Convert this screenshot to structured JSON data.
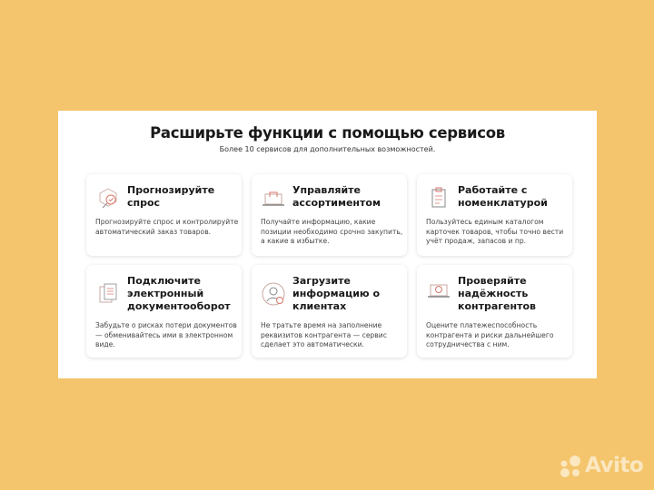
{
  "header": {
    "title": "Расширьте функции с помощью сервисов",
    "subtitle": "Более 10 сервисов для дополнительных возможностей."
  },
  "cards": [
    {
      "title": "Прогнозируйте спрос",
      "text": "Прогнозируйте спрос и контролируйте автоматический заказ товаров.",
      "icon": "forecast-box-magnifier-icon"
    },
    {
      "title": "Управляйте ассортиментом",
      "text": "Получайте информацию, какие позиции необходимо срочно закупить, а какие в избытке.",
      "icon": "laptop-bag-icon"
    },
    {
      "title": "Работайте с номенклатурой",
      "text": "Пользуйтесь единым каталогом карточек товаров, чтобы точно вести учёт продаж, запасов и пр.",
      "icon": "clipboard-check-icon"
    },
    {
      "title": "Подключите электронный документооборот",
      "text": "Забудьте о рисках потери документов — обменивайтесь ими в электронном виде.",
      "icon": "documents-icon"
    },
    {
      "title": "Загрузите информацию о клиентах",
      "text": "Не тратьте время на заполнение реквизитов контрагента — сервис сделает это автоматически.",
      "icon": "user-check-icon"
    },
    {
      "title": "Проверяйте надёжность контрагентов",
      "text": "Оцените платежеспособность контрагента и риски дальнейшего сотрудничества с ним.",
      "icon": "laptop-check-icon"
    }
  ],
  "logo": {
    "text": "Avito"
  },
  "colors": {
    "background": "#f4c56c",
    "accent": "#d9776b"
  }
}
